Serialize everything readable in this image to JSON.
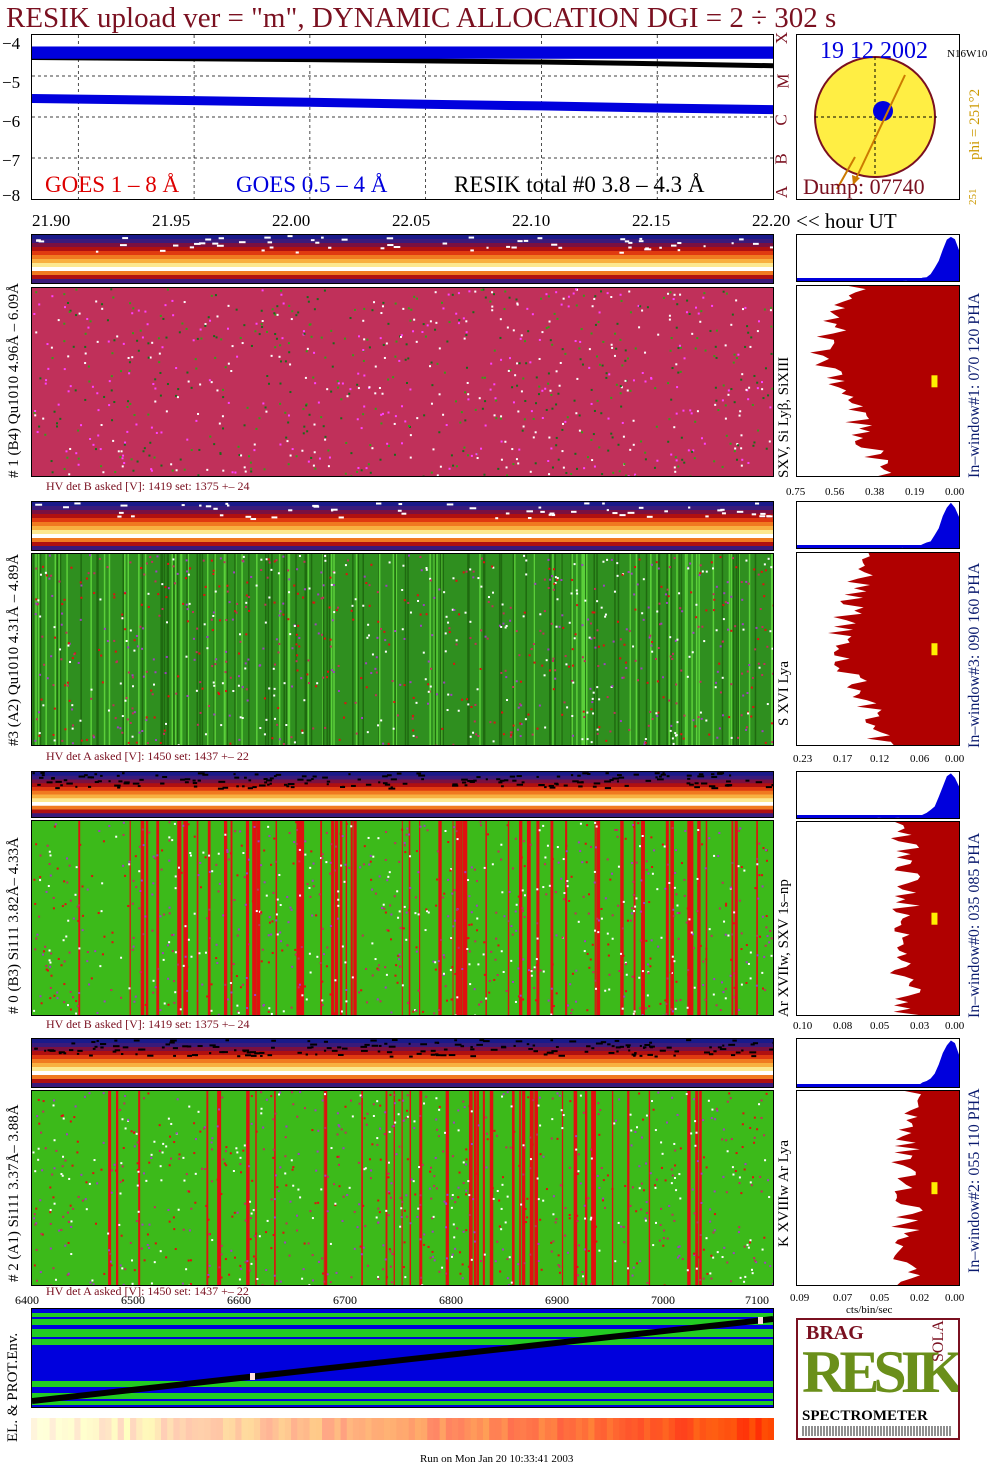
{
  "title": "RESIK upload ver = \"m\", DYNAMIC ALLOCATION  DGI =   2 ÷ 302 s",
  "colors": {
    "title": "#7a1020",
    "goes_long": "#dd0000",
    "goes_short": "#0000dd",
    "resik": "#000000",
    "heading_dark": "#0a1a6e",
    "sun": "#ffee44",
    "spectrum": "#b00000"
  },
  "lightcurve": {
    "y_ticks": [
      "−4",
      "−5",
      "−6",
      "−7",
      "−8"
    ],
    "legend_goes_long": "GOES 1 – 8 Å",
    "legend_goes_short": "GOES 0.5 – 4 Å",
    "legend_resik": "RESIK total #0  3.8 – 4.3 Å",
    "right_labels": [
      "X",
      "M",
      "C",
      "B",
      "A"
    ]
  },
  "sun_panel": {
    "date": "19 12 2002",
    "location": "N16W10",
    "phi": "phi = 251°2",
    "dump": "Dump: 07740",
    "small_value": "251"
  },
  "time_axis": {
    "ticks": [
      "21.90",
      "21.95",
      "22.00",
      "22.05",
      "22.10",
      "22.15",
      "22.20"
    ],
    "unit_label": "<< hour UT"
  },
  "detectors": [
    {
      "left_label": "# 1 (B4) Qu1010 4.96Å – 6.09Å",
      "right_label": "SXV, Si Lyβ, SiXIII",
      "window_label": "In–window#1:  070 120 PHA",
      "hv": "HV det B asked [V]:  1419 set:  1375  +–   24",
      "pha_ticks": [
        "0.75",
        "0.56",
        "0.38",
        "0.19",
        "0.00"
      ]
    },
    {
      "left_label": "#3 (A2) Qu1010  4.31Å – 4.89Å",
      "right_label": "S XVI Lya",
      "window_label": "In–window#3:  090 160 PHA",
      "hv": "HV det A asked [V]:  1450 set:  1437  +–   22",
      "pha_ticks": [
        "0.23",
        "0.17",
        "0.12",
        "0.06",
        "0.00"
      ]
    },
    {
      "left_label": "# 0 (B3) Si111  3.82Å– 4.33Å",
      "right_label": "Ar XVIIw,  SXV 1s–np",
      "window_label": "In–window#0:  035 085 PHA",
      "hv": "HV det B asked [V]:  1419 set:  1375  +–   24",
      "pha_ticks": [
        "0.10",
        "0.08",
        "0.05",
        "0.03",
        "0.00"
      ]
    },
    {
      "left_label": "# 2 (A1) Si111  3.37Å– 3.88Å",
      "right_label": "K XVIIIw   Ar Lya",
      "window_label": "In–window#2:  055 110 PHA",
      "hv": "HV det A asked [V]:  1450 set:  1437  +–   22",
      "pha_ticks": [
        "0.09",
        "0.07",
        "0.05",
        "0.02",
        "0.00"
      ]
    }
  ],
  "bottom_panel": {
    "x_ticks": [
      "6400",
      "6500",
      "6600",
      "6700",
      "6800",
      "6900",
      "7000",
      "7100"
    ],
    "left_label": "EL. & PROT.Env.",
    "cts_label": "cts/bin/sec"
  },
  "logo": {
    "top_letters": "BRAG",
    "main": "RESIK",
    "side": "SOLAR",
    "bottom": "SPECTROMETER"
  },
  "footer": "Run on Mon Jan 20 10:33:41 2003",
  "chart_data": [
    {
      "type": "line",
      "title": "RESIK upload ver = \"m\", DYNAMIC ALLOCATION  DGI =   2 ÷ 302 s",
      "xlabel": "hour UT",
      "ylim": [
        -8,
        -4
      ],
      "x": [
        21.88,
        21.95,
        22.0,
        22.05,
        22.1,
        22.15,
        22.2
      ],
      "series": [
        {
          "name": "GOES 0.5 – 4 Å",
          "values": [
            -5.55,
            -5.6,
            -5.64,
            -5.69,
            -5.73,
            -5.78,
            -5.82
          ]
        },
        {
          "name": "RESIK total #0  3.8 – 4.3 Å",
          "values": [
            -4.55,
            -4.58,
            -4.6,
            -4.63,
            -4.66,
            -4.7,
            -4.75
          ]
        }
      ]
    },
    {
      "type": "bar",
      "title": "",
      "xlabel": "cts/bin/sec",
      "categories": [
        "#1",
        "#3",
        "#0",
        "#2"
      ],
      "series": [
        {
          "name": "xmax",
          "values": [
            0.75,
            0.23,
            0.1,
            0.09
          ]
        }
      ]
    }
  ]
}
